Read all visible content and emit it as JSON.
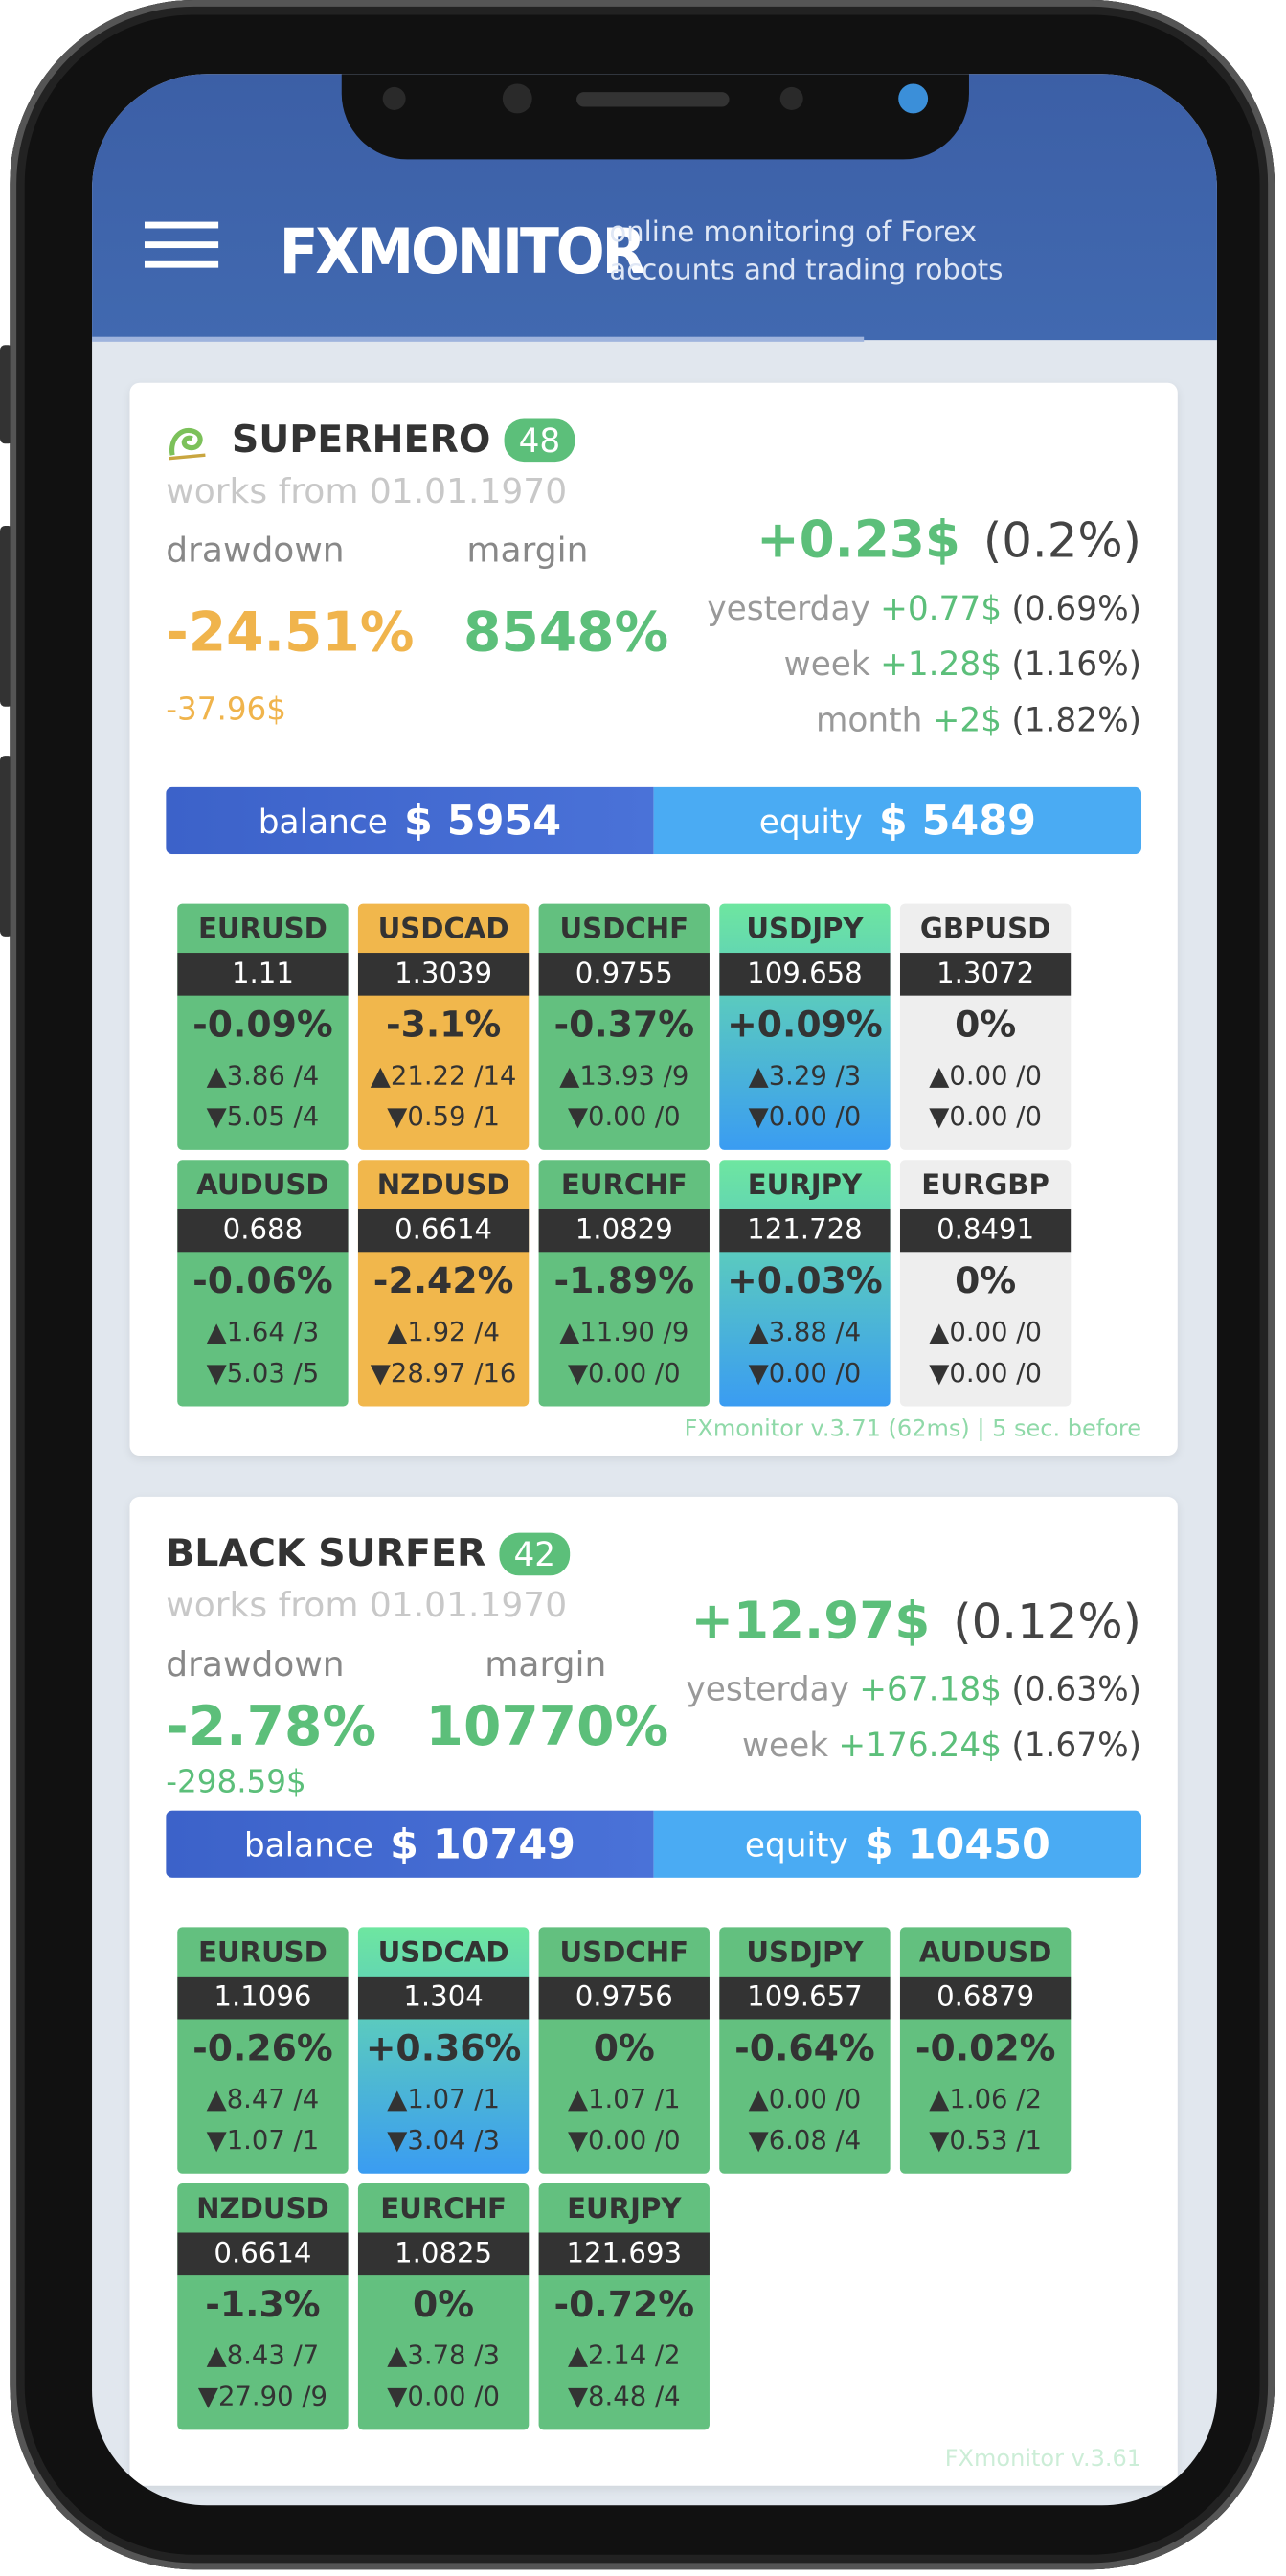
{
  "header": {
    "title": "FXMONITOR",
    "tagline": [
      "online monitoring of Forex",
      "accounts and trading robots"
    ]
  },
  "accounts": [
    {
      "name": "SUPERHERO",
      "badge": "48",
      "icon": true,
      "works_from": "works from 01.01.1970",
      "drawdown_label": "drawdown",
      "drawdown": "-24.51%",
      "drawdown_money": "-37.96$",
      "drawdown_color": "#f0b44c",
      "margin_label": "margin",
      "margin": "8548%",
      "profit": "+0.23$",
      "profit_pct": "(0.2%)",
      "periods": [
        {
          "label": "yesterday",
          "value": "+0.77$",
          "pct": "(0.69%)"
        },
        {
          "label": "week",
          "value": "+1.28$",
          "pct": "(1.16%)"
        },
        {
          "label": "month",
          "value": "+2$",
          "pct": "(1.82%)"
        }
      ],
      "balance_label": "balance",
      "balance": "$ 5954",
      "equity_label": "equity",
      "equity": "$ 5489",
      "pairs": [
        {
          "symbol": "EURUSD",
          "price": "1.11",
          "change": "-0.09%",
          "up": "▲3.86 /4",
          "down": "▼5.05 /4",
          "color": "#63c07f"
        },
        {
          "symbol": "USDCAD",
          "price": "1.3039",
          "change": "-3.1%",
          "up": "▲21.22 /14",
          "down": "▼0.59 /1",
          "color": "#f1b74c"
        },
        {
          "symbol": "USDCHF",
          "price": "0.9755",
          "change": "-0.37%",
          "up": "▲13.93 /9",
          "down": "▼0.00 /0",
          "color": "#63c07f"
        },
        {
          "symbol": "USDJPY",
          "price": "109.658",
          "change": "+0.09%",
          "up": "▲3.29 /3",
          "down": "▼0.00 /0",
          "color": [
            "#6ee6a0",
            "#3a9cf2"
          ]
        },
        {
          "symbol": "GBPUSD",
          "price": "1.3072",
          "change": "0%",
          "up": "▲0.00 /0",
          "down": "▼0.00 /0",
          "color": "#eeeeee"
        },
        {
          "symbol": "AUDUSD",
          "price": "0.688",
          "change": "-0.06%",
          "up": "▲1.64 /3",
          "down": "▼5.03 /5",
          "color": "#63c07f"
        },
        {
          "symbol": "NZDUSD",
          "price": "0.6614",
          "change": "-2.42%",
          "up": "▲1.92 /4",
          "down": "▼28.97 /16",
          "color": "#f1b74c"
        },
        {
          "symbol": "EURCHF",
          "price": "1.0829",
          "change": "-1.89%",
          "up": "▲11.90 /9",
          "down": "▼0.00 /0",
          "color": "#63c07f"
        },
        {
          "symbol": "EURJPY",
          "price": "121.728",
          "change": "+0.03%",
          "up": "▲3.88 /4",
          "down": "▼0.00 /0",
          "color": [
            "#6ee6a0",
            "#3a9cf2"
          ]
        },
        {
          "symbol": "EURGBP",
          "price": "0.8491",
          "change": "0%",
          "up": "▲0.00 /0",
          "down": "▼0.00 /0",
          "color": "#eeeeee"
        }
      ],
      "footer": "FXmonitor v.3.71 (62ms) | 5 sec. before"
    },
    {
      "name": "BLACK SURFER",
      "badge": "42",
      "icon": false,
      "works_from": "works from 01.01.1970",
      "drawdown_label": "drawdown",
      "drawdown": "-2.78%",
      "drawdown_money": "-298.59$",
      "drawdown_color": "#5cbf7a",
      "margin_label": "margin",
      "margin": "10770%",
      "profit": "+12.97$",
      "profit_pct": "(0.12%)",
      "periods": [
        {
          "label": "yesterday",
          "value": "+67.18$",
          "pct": "(0.63%)"
        },
        {
          "label": "week",
          "value": "+176.24$",
          "pct": "(1.67%)"
        }
      ],
      "balance_label": "balance",
      "balance": "$ 10749",
      "equity_label": "equity",
      "equity": "$ 10450",
      "pairs": [
        {
          "symbol": "EURUSD",
          "price": "1.1096",
          "change": "-0.26%",
          "up": "▲8.47 /4",
          "down": "▼1.07 /1",
          "color": "#63c07f"
        },
        {
          "symbol": "USDCAD",
          "price": "1.304",
          "change": "+0.36%",
          "up": "▲1.07 /1",
          "down": "▼3.04 /3",
          "color": [
            "#6ee6a0",
            "#3a9cf2"
          ]
        },
        {
          "symbol": "USDCHF",
          "price": "0.9756",
          "change": "0%",
          "up": "▲1.07 /1",
          "down": "▼0.00 /0",
          "color": "#63c07f"
        },
        {
          "symbol": "USDJPY",
          "price": "109.657",
          "change": "-0.64%",
          "up": "▲0.00 /0",
          "down": "▼6.08 /4",
          "color": "#63c07f"
        },
        {
          "symbol": "AUDUSD",
          "price": "0.6879",
          "change": "-0.02%",
          "up": "▲1.06 /2",
          "down": "▼0.53 /1",
          "color": "#63c07f"
        },
        {
          "symbol": "NZDUSD",
          "price": "0.6614",
          "change": "-1.3%",
          "up": "▲8.43 /7",
          "down": "▼27.90 /9",
          "color": "#63c07f"
        },
        {
          "symbol": "EURCHF",
          "price": "1.0825",
          "change": "0%",
          "up": "▲3.78 /3",
          "down": "▼0.00 /0",
          "color": "#63c07f"
        },
        {
          "symbol": "EURJPY",
          "price": "121.693",
          "change": "-0.72%",
          "up": "▲2.14 /2",
          "down": "▼8.48 /4",
          "color": "#63c07f"
        }
      ],
      "footer": "FXmonitor v.3.61"
    }
  ]
}
